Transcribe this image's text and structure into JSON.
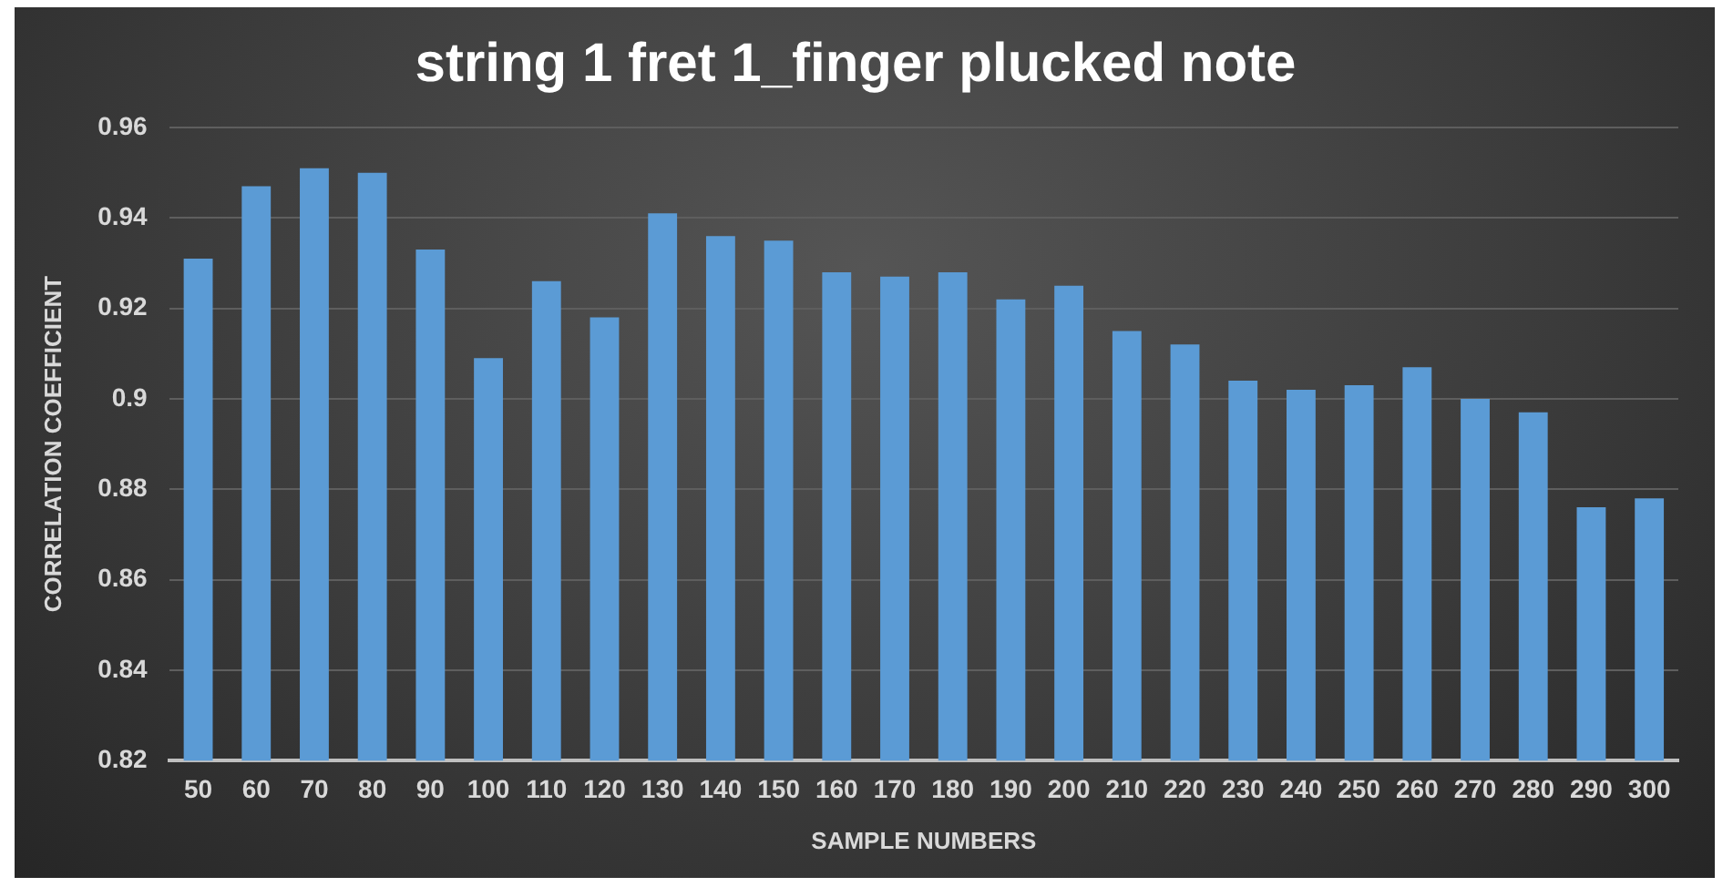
{
  "chart_data": {
    "type": "bar",
    "title": "string 1 fret 1_finger plucked note",
    "xlabel": "SAMPLE NUMBERS",
    "ylabel": "CORRELATION COEFFICIENT",
    "categories": [
      "50",
      "60",
      "70",
      "80",
      "90",
      "100",
      "110",
      "120",
      "130",
      "140",
      "150",
      "160",
      "170",
      "180",
      "190",
      "200",
      "210",
      "220",
      "230",
      "240",
      "250",
      "260",
      "270",
      "280",
      "290",
      "300"
    ],
    "values": [
      0.931,
      0.947,
      0.951,
      0.95,
      0.933,
      0.909,
      0.926,
      0.918,
      0.941,
      0.936,
      0.935,
      0.928,
      0.927,
      0.928,
      0.922,
      0.925,
      0.915,
      0.912,
      0.904,
      0.902,
      0.903,
      0.907,
      0.9,
      0.897,
      0.876,
      0.878
    ],
    "color": "#5b9bd5",
    "ylim": [
      0.82,
      0.96
    ],
    "yticks": [
      0.82,
      0.84,
      0.86,
      0.88,
      0.9,
      0.92,
      0.94,
      0.96
    ],
    "grid": "y"
  }
}
